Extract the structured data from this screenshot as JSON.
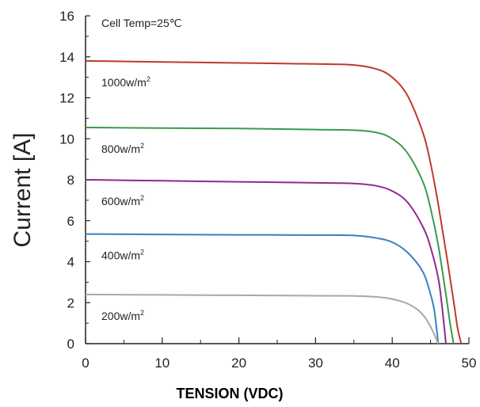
{
  "chart_data": {
    "type": "line",
    "title": "",
    "xlabel": "TENSION (VDC)",
    "ylabel": "Current [A]",
    "xlim": [
      0,
      50
    ],
    "ylim": [
      0,
      16
    ],
    "x_ticks": [
      "0",
      "10",
      "20",
      "30",
      "40",
      "50"
    ],
    "y_ticks": [
      "0",
      "2",
      "4",
      "6",
      "8",
      "10",
      "12",
      "14",
      "16"
    ],
    "grid": false,
    "annotations": {
      "cell_temp": "Cell Temp=25℃"
    },
    "series": [
      {
        "name": "1000w/m²",
        "label_base": "1000w/m",
        "label_sup": "2",
        "color": "#c0392b",
        "x": [
          0,
          10,
          20,
          30,
          35,
          38,
          40,
          42,
          44,
          45,
          46,
          47,
          48,
          48.5,
          49
        ],
        "y": [
          13.8,
          13.75,
          13.7,
          13.65,
          13.6,
          13.4,
          13.0,
          12.1,
          10.3,
          8.8,
          6.8,
          4.5,
          2.1,
          0.8,
          0
        ]
      },
      {
        "name": "800w/m²",
        "label_base": "800w/m",
        "label_sup": "2",
        "color": "#3a9a4e",
        "x": [
          0,
          10,
          20,
          30,
          35,
          38,
          40,
          42,
          44,
          45,
          46,
          47,
          47.5,
          48
        ],
        "y": [
          10.55,
          10.52,
          10.5,
          10.45,
          10.42,
          10.3,
          10.0,
          9.3,
          7.9,
          6.6,
          4.8,
          2.4,
          1.1,
          0
        ]
      },
      {
        "name": "600w/m²",
        "label_base": "600w/m",
        "label_sup": "2",
        "color": "#8e2a8c",
        "x": [
          0,
          10,
          20,
          30,
          35,
          38,
          40,
          42,
          44,
          45,
          46,
          46.5,
          47
        ],
        "y": [
          8.0,
          7.95,
          7.9,
          7.85,
          7.82,
          7.7,
          7.45,
          6.9,
          5.7,
          4.7,
          3.2,
          1.8,
          0
        ]
      },
      {
        "name": "400w/m²",
        "label_base": "400w/m",
        "label_sup": "2",
        "color": "#3b7fc4",
        "x": [
          0,
          10,
          20,
          30,
          35,
          38,
          40,
          42,
          44,
          45,
          45.5,
          46
        ],
        "y": [
          5.35,
          5.33,
          5.31,
          5.3,
          5.28,
          5.15,
          4.95,
          4.45,
          3.5,
          2.4,
          1.6,
          0
        ]
      },
      {
        "name": "200w/m²",
        "label_base": "200w/m",
        "label_sup": "2",
        "color": "#a8a8a8",
        "x": [
          0,
          10,
          20,
          30,
          35,
          38,
          40,
          42,
          43.5,
          44.5,
          45.3,
          46
        ],
        "y": [
          2.4,
          2.38,
          2.36,
          2.34,
          2.33,
          2.28,
          2.18,
          1.95,
          1.6,
          1.15,
          0.6,
          0
        ]
      }
    ]
  }
}
